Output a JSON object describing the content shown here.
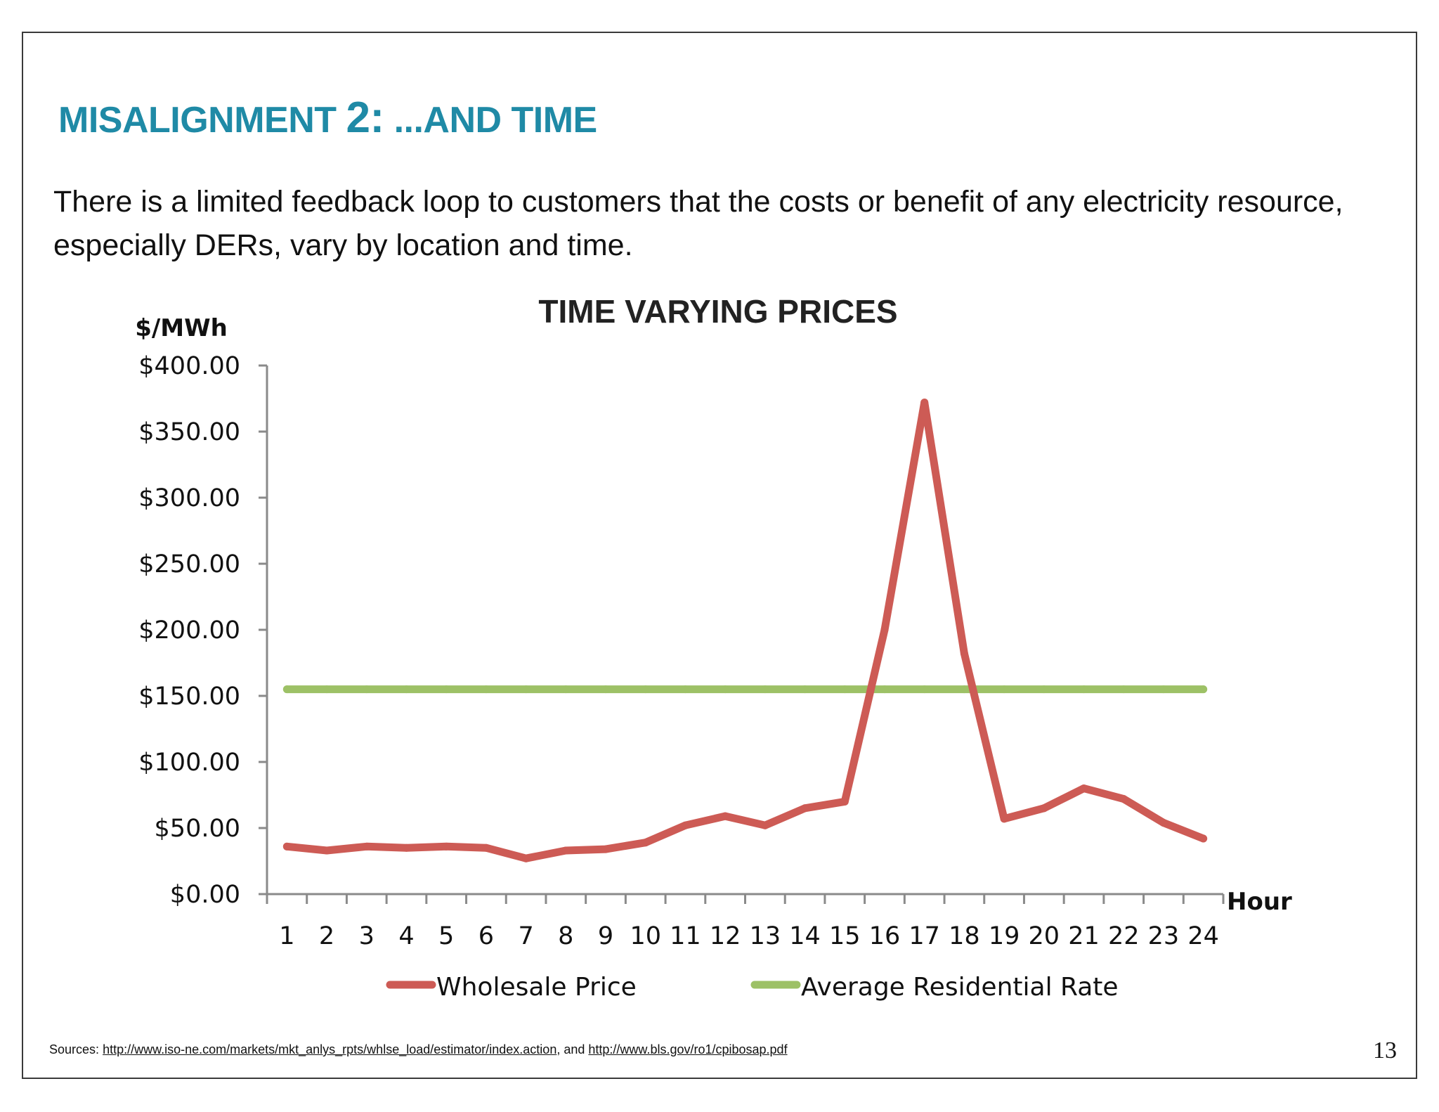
{
  "slide": {
    "heading_part1": "MISALIGNMENT",
    "heading_number": "2:",
    "heading_part2": "...AND TIME",
    "body": "There is a limited feedback loop to customers that the costs or benefit of any electricity resource, especially DERs, vary by location and time.",
    "sources_prefix": "Sources:",
    "source_link_1": "http://www.iso-ne.com/markets/mkt_anlys_rpts/whlse_load/estimator/index.action",
    "sources_and": ", and",
    "source_link_2": "http://www.bls.gov/ro1/cpibosap.pdf",
    "page_number": "13"
  },
  "chart_data": {
    "type": "line",
    "title": "TIME VARYING PRICES",
    "ylabel": "$/MWh",
    "xlabel": "Hour",
    "ylim": [
      0,
      400
    ],
    "y_ticks": [
      0,
      50,
      100,
      150,
      200,
      250,
      300,
      350,
      400
    ],
    "y_tick_labels": [
      "$0.00",
      "$50.00",
      "$100.00",
      "$150.00",
      "$200.00",
      "$250.00",
      "$300.00",
      "$350.00",
      "$400.00"
    ],
    "categories": [
      "1",
      "2",
      "3",
      "4",
      "5",
      "6",
      "7",
      "8",
      "9",
      "10",
      "11",
      "12",
      "13",
      "14",
      "15",
      "16",
      "17",
      "18",
      "19",
      "20",
      "21",
      "22",
      "23",
      "24"
    ],
    "series": [
      {
        "name": "Wholesale Price",
        "color": "#cd5b55",
        "values": [
          36,
          33,
          36,
          35,
          36,
          35,
          27,
          33,
          34,
          39,
          52,
          59,
          52,
          65,
          70,
          200,
          372,
          182,
          57,
          65,
          80,
          72,
          54,
          42
        ]
      },
      {
        "name": "Average Residential Rate",
        "color": "#9dc166",
        "values": [
          155,
          155,
          155,
          155,
          155,
          155,
          155,
          155,
          155,
          155,
          155,
          155,
          155,
          155,
          155,
          155,
          155,
          155,
          155,
          155,
          155,
          155,
          155,
          155
        ]
      }
    ],
    "grid": false,
    "legend": "bottom"
  }
}
